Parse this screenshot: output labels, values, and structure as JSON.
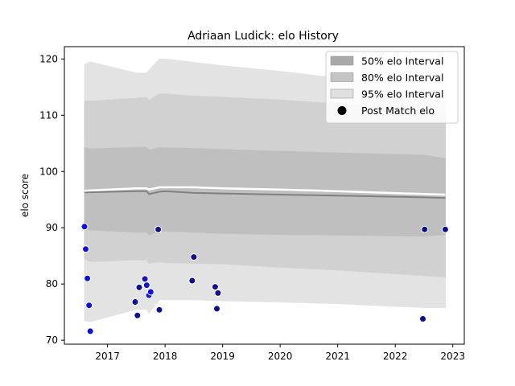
{
  "chart_data": {
    "type": "area",
    "title": "Adriaan Ludick: elo History",
    "xlabel": "",
    "ylabel": "elo score",
    "xlim": [
      2016.25,
      2023.2
    ],
    "ylim": [
      69.3,
      122.2
    ],
    "x_ticks": [
      2017,
      2018,
      2019,
      2020,
      2021,
      2022,
      2023
    ],
    "x_tick_labels": [
      "2017",
      "2018",
      "2019",
      "2020",
      "2021",
      "2022",
      "2023"
    ],
    "y_ticks": [
      70,
      80,
      90,
      100,
      110,
      120
    ],
    "y_tick_labels": [
      "70",
      "80",
      "90",
      "100",
      "110",
      "120"
    ],
    "legend": {
      "position": "top-right",
      "entries": [
        {
          "label": "50% elo Interval",
          "kind": "patch",
          "color": "#a9a9a9"
        },
        {
          "label": "80% elo Interval",
          "kind": "patch",
          "color": "#c4c4c4"
        },
        {
          "label": "95% elo Interval",
          "kind": "patch",
          "color": "#e0e0e0"
        },
        {
          "label": "Post Match elo",
          "kind": "marker",
          "color": "#000000"
        }
      ]
    },
    "bands": [
      {
        "name": "95% elo Interval",
        "color": "#e3e3e3",
        "x": [
          2016.6,
          2016.7,
          2017.5,
          2017.68,
          2017.72,
          2017.9,
          2018.0,
          2018.5,
          2019.0,
          2020.0,
          2021.0,
          2022.5,
          2022.87
        ],
        "upper": [
          119.0,
          119.5,
          117.5,
          117.5,
          118.0,
          120.0,
          120.0,
          119.4,
          118.8,
          117.8,
          116.6,
          115.0,
          114.5
        ],
        "lower": [
          73.5,
          73.3,
          75.5,
          75.5,
          74.8,
          77.2,
          77.2,
          77.2,
          77.0,
          76.8,
          76.5,
          75.8,
          75.8
        ]
      },
      {
        "name": "80% elo Interval",
        "color": "#d1d1d1",
        "x": [
          2016.6,
          2016.7,
          2017.5,
          2017.68,
          2017.72,
          2017.9,
          2018.0,
          2018.5,
          2019.0,
          2020.0,
          2021.0,
          2022.5,
          2022.87
        ],
        "upper": [
          112.5,
          112.5,
          113.0,
          113.2,
          112.6,
          113.8,
          113.8,
          113.4,
          113.2,
          112.7,
          112.0,
          111.0,
          110.5
        ],
        "lower": [
          84.5,
          84.0,
          84.3,
          84.3,
          83.7,
          84.0,
          83.8,
          83.7,
          83.6,
          83.0,
          82.5,
          81.5,
          81.3
        ]
      },
      {
        "name": "50% elo Interval",
        "color": "#bfbfbf",
        "x": [
          2016.6,
          2016.7,
          2017.5,
          2017.68,
          2017.72,
          2017.9,
          2018.0,
          2018.5,
          2019.0,
          2020.0,
          2021.0,
          2022.5,
          2022.87
        ],
        "upper": [
          104.3,
          104.0,
          104.3,
          104.3,
          103.8,
          104.2,
          104.2,
          104.1,
          103.9,
          103.6,
          103.3,
          102.9,
          102.3
        ],
        "lower": [
          89.8,
          89.6,
          89.2,
          89.2,
          88.7,
          89.4,
          89.4,
          89.2,
          89.0,
          88.8,
          88.7,
          88.5,
          88.8
        ]
      }
    ],
    "lines": [
      {
        "name": "elo mean",
        "color": "#808080",
        "width": 2,
        "x": [
          2016.6,
          2017.5,
          2017.68,
          2017.72,
          2017.9,
          2018.0,
          2018.5,
          2019.0,
          2020.0,
          2021.0,
          2022.5,
          2022.87
        ],
        "y": [
          96.3,
          96.5,
          96.5,
          96.0,
          96.4,
          96.5,
          96.2,
          96.1,
          95.9,
          95.7,
          95.4,
          95.3
        ]
      },
      {
        "name": "elo upper trace",
        "color": "#ffffff",
        "width": 2.5,
        "x": [
          2016.6,
          2017.5,
          2017.68,
          2017.72,
          2017.9,
          2018.0,
          2018.5,
          2019.0,
          2020.0,
          2021.0,
          2022.5,
          2022.87
        ],
        "y": [
          96.6,
          97.0,
          97.0,
          96.8,
          97.2,
          97.2,
          97.2,
          97.0,
          96.8,
          96.5,
          96.0,
          95.9
        ]
      }
    ],
    "points": {
      "name": "Post Match elo",
      "x": [
        2016.6,
        2016.62,
        2016.65,
        2016.68,
        2016.7,
        2017.48,
        2017.52,
        2017.55,
        2017.65,
        2017.68,
        2017.72,
        2017.75,
        2017.88,
        2017.9,
        2018.47,
        2018.5,
        2018.87,
        2018.9,
        2018.92,
        2022.48,
        2022.51,
        2022.87
      ],
      "y": [
        90.2,
        86.2,
        81.0,
        76.2,
        71.6,
        76.8,
        74.4,
        79.4,
        80.9,
        79.8,
        78.0,
        78.6,
        89.7,
        75.4,
        80.6,
        84.8,
        79.5,
        75.6,
        78.4,
        73.8,
        89.7,
        89.7
      ],
      "colors": [
        "#1010dd",
        "#1010dd",
        "#1010dd",
        "#1010dd",
        "#1010dd",
        "#10108a",
        "#10108a",
        "#10108a",
        "#1515c8",
        "#1515c8",
        "#1515c8",
        "#1010dd",
        "#10108a",
        "#10108a",
        "#10108a",
        "#10108a",
        "#10108a",
        "#10108a",
        "#10108a",
        "#10108a",
        "#10108a",
        "#10108a"
      ]
    }
  }
}
